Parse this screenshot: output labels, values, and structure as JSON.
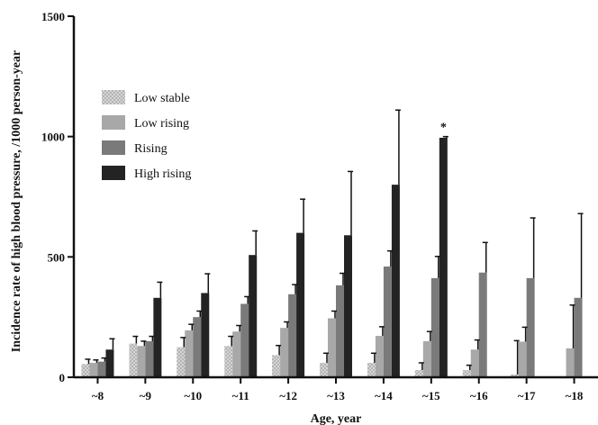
{
  "chart_data": {
    "type": "bar",
    "title": "",
    "xlabel": "Age, year",
    "ylabel": "Incidence rate of high blood pressure, /1000 person-year",
    "ylim": [
      0,
      1500
    ],
    "yticks": [
      0,
      500,
      1000,
      1500
    ],
    "categories": [
      "~8",
      "~9",
      "~10",
      "~11",
      "~12",
      "~13",
      "~14",
      "~15",
      "~16",
      "~17",
      "~18"
    ],
    "legend_position": "top-left",
    "grid": false,
    "series": [
      {
        "name": "Low stable",
        "color": "#c8c8c8",
        "pattern": "dotted",
        "values": [
          55,
          140,
          125,
          130,
          92,
          60,
          60,
          30,
          30,
          12,
          null
        ],
        "errors": [
          20,
          30,
          40,
          40,
          40,
          40,
          40,
          30,
          20,
          140,
          null
        ]
      },
      {
        "name": "Low rising",
        "color": "#a8a8a8",
        "values": [
          60,
          130,
          195,
          190,
          205,
          245,
          172,
          150,
          115,
          148,
          120
        ],
        "errors": [
          12,
          20,
          25,
          25,
          25,
          30,
          38,
          40,
          40,
          60,
          180
        ]
      },
      {
        "name": "Rising",
        "color": "#7a7a7a",
        "values": [
          65,
          150,
          250,
          305,
          345,
          382,
          460,
          412,
          435,
          412,
          330
        ],
        "errors": [
          15,
          20,
          25,
          30,
          40,
          50,
          65,
          90,
          125,
          250,
          350
        ]
      },
      {
        "name": "High rising",
        "color": "#232323",
        "values": [
          115,
          330,
          350,
          508,
          600,
          590,
          800,
          995,
          null,
          null,
          null
        ],
        "errors": [
          45,
          65,
          80,
          100,
          140,
          265,
          310,
          5,
          null,
          null,
          null
        ]
      }
    ],
    "annotations": [
      {
        "text": "*",
        "category": "~15",
        "series": "High rising"
      }
    ]
  }
}
